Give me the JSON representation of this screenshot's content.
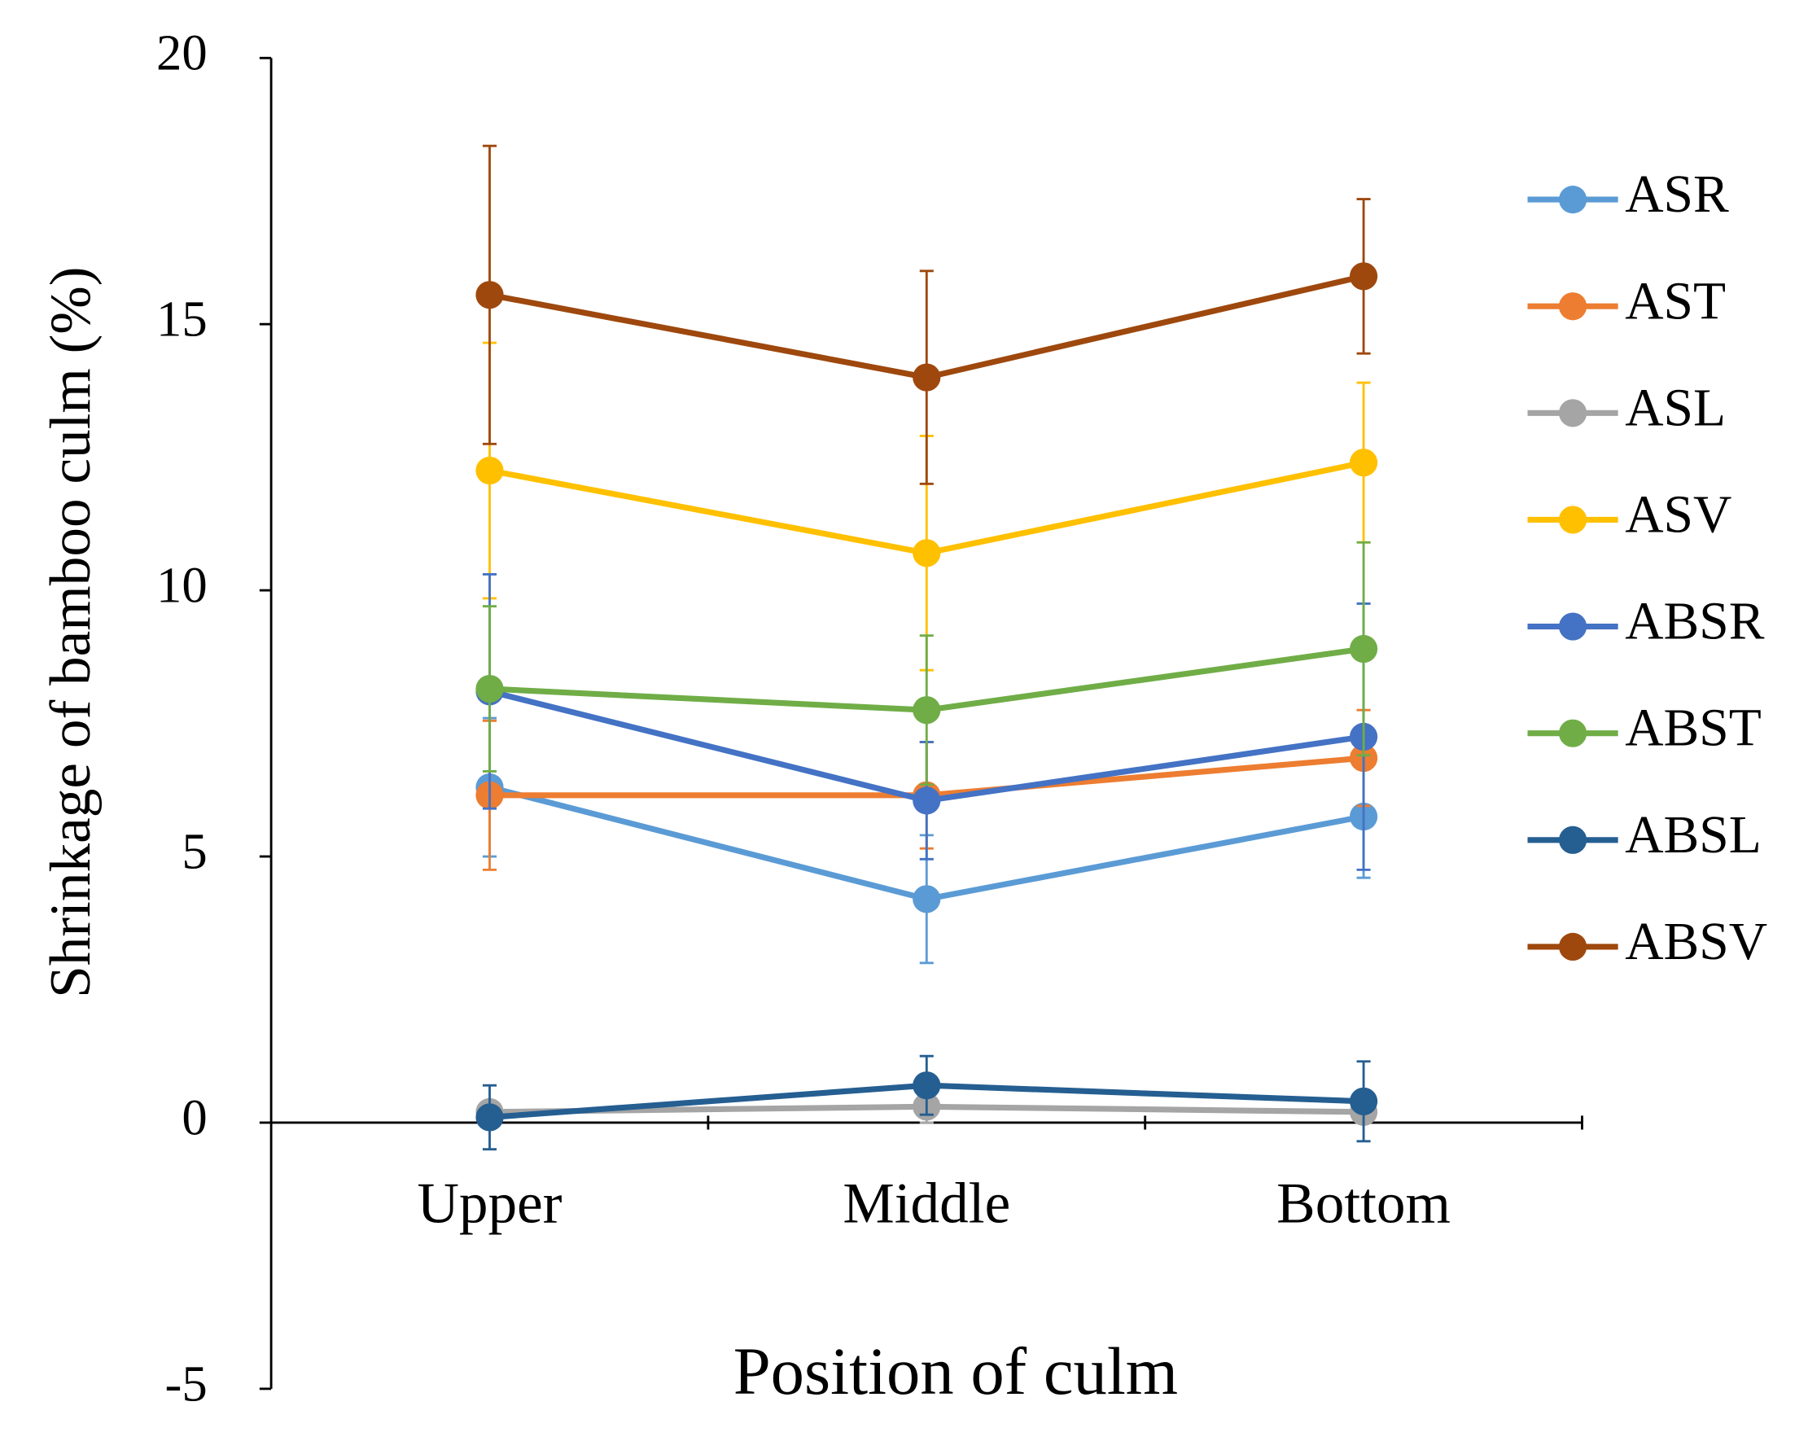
{
  "chart_data": {
    "type": "line",
    "x_label": "Position of culm",
    "y_label": "Shrinkage of bamboo culm (%)",
    "categories": [
      "Upper",
      "Middle",
      "Bottom"
    ],
    "ylim": [
      -5,
      20
    ],
    "yticks": [
      -5,
      0,
      5,
      10,
      15,
      20
    ],
    "legend": "right",
    "series": [
      {
        "name": "ASR",
        "color": "#5b9bd5",
        "values": [
          6.3,
          4.2,
          5.75
        ],
        "errors": [
          1.3,
          1.2,
          1.15
        ]
      },
      {
        "name": "AST",
        "color": "#ed7d31",
        "values": [
          6.15,
          6.15,
          6.85
        ],
        "errors": [
          1.4,
          1.0,
          0.9
        ]
      },
      {
        "name": "ASL",
        "color": "#a5a5a5",
        "values": [
          0.2,
          0.3,
          0.2
        ],
        "errors": [
          0.2,
          0.3,
          0.2
        ]
      },
      {
        "name": "ASV",
        "color": "#ffc000",
        "values": [
          12.25,
          10.7,
          12.4
        ],
        "errors": [
          2.4,
          2.2,
          1.5
        ]
      },
      {
        "name": "ABSR",
        "color": "#4472c4",
        "values": [
          8.1,
          6.05,
          7.25
        ],
        "errors": [
          2.2,
          1.1,
          2.5
        ]
      },
      {
        "name": "ABST",
        "color": "#70ad47",
        "values": [
          8.15,
          7.75,
          8.9
        ],
        "errors": [
          1.55,
          1.4,
          2.0
        ]
      },
      {
        "name": "ABSL",
        "color": "#255e91",
        "values": [
          0.1,
          0.7,
          0.4
        ],
        "errors": [
          0.6,
          0.55,
          0.75
        ]
      },
      {
        "name": "ABSV",
        "color": "#9e480e",
        "values": [
          15.55,
          14.0,
          15.9
        ],
        "errors": [
          2.8,
          2.0,
          1.45
        ]
      }
    ]
  }
}
